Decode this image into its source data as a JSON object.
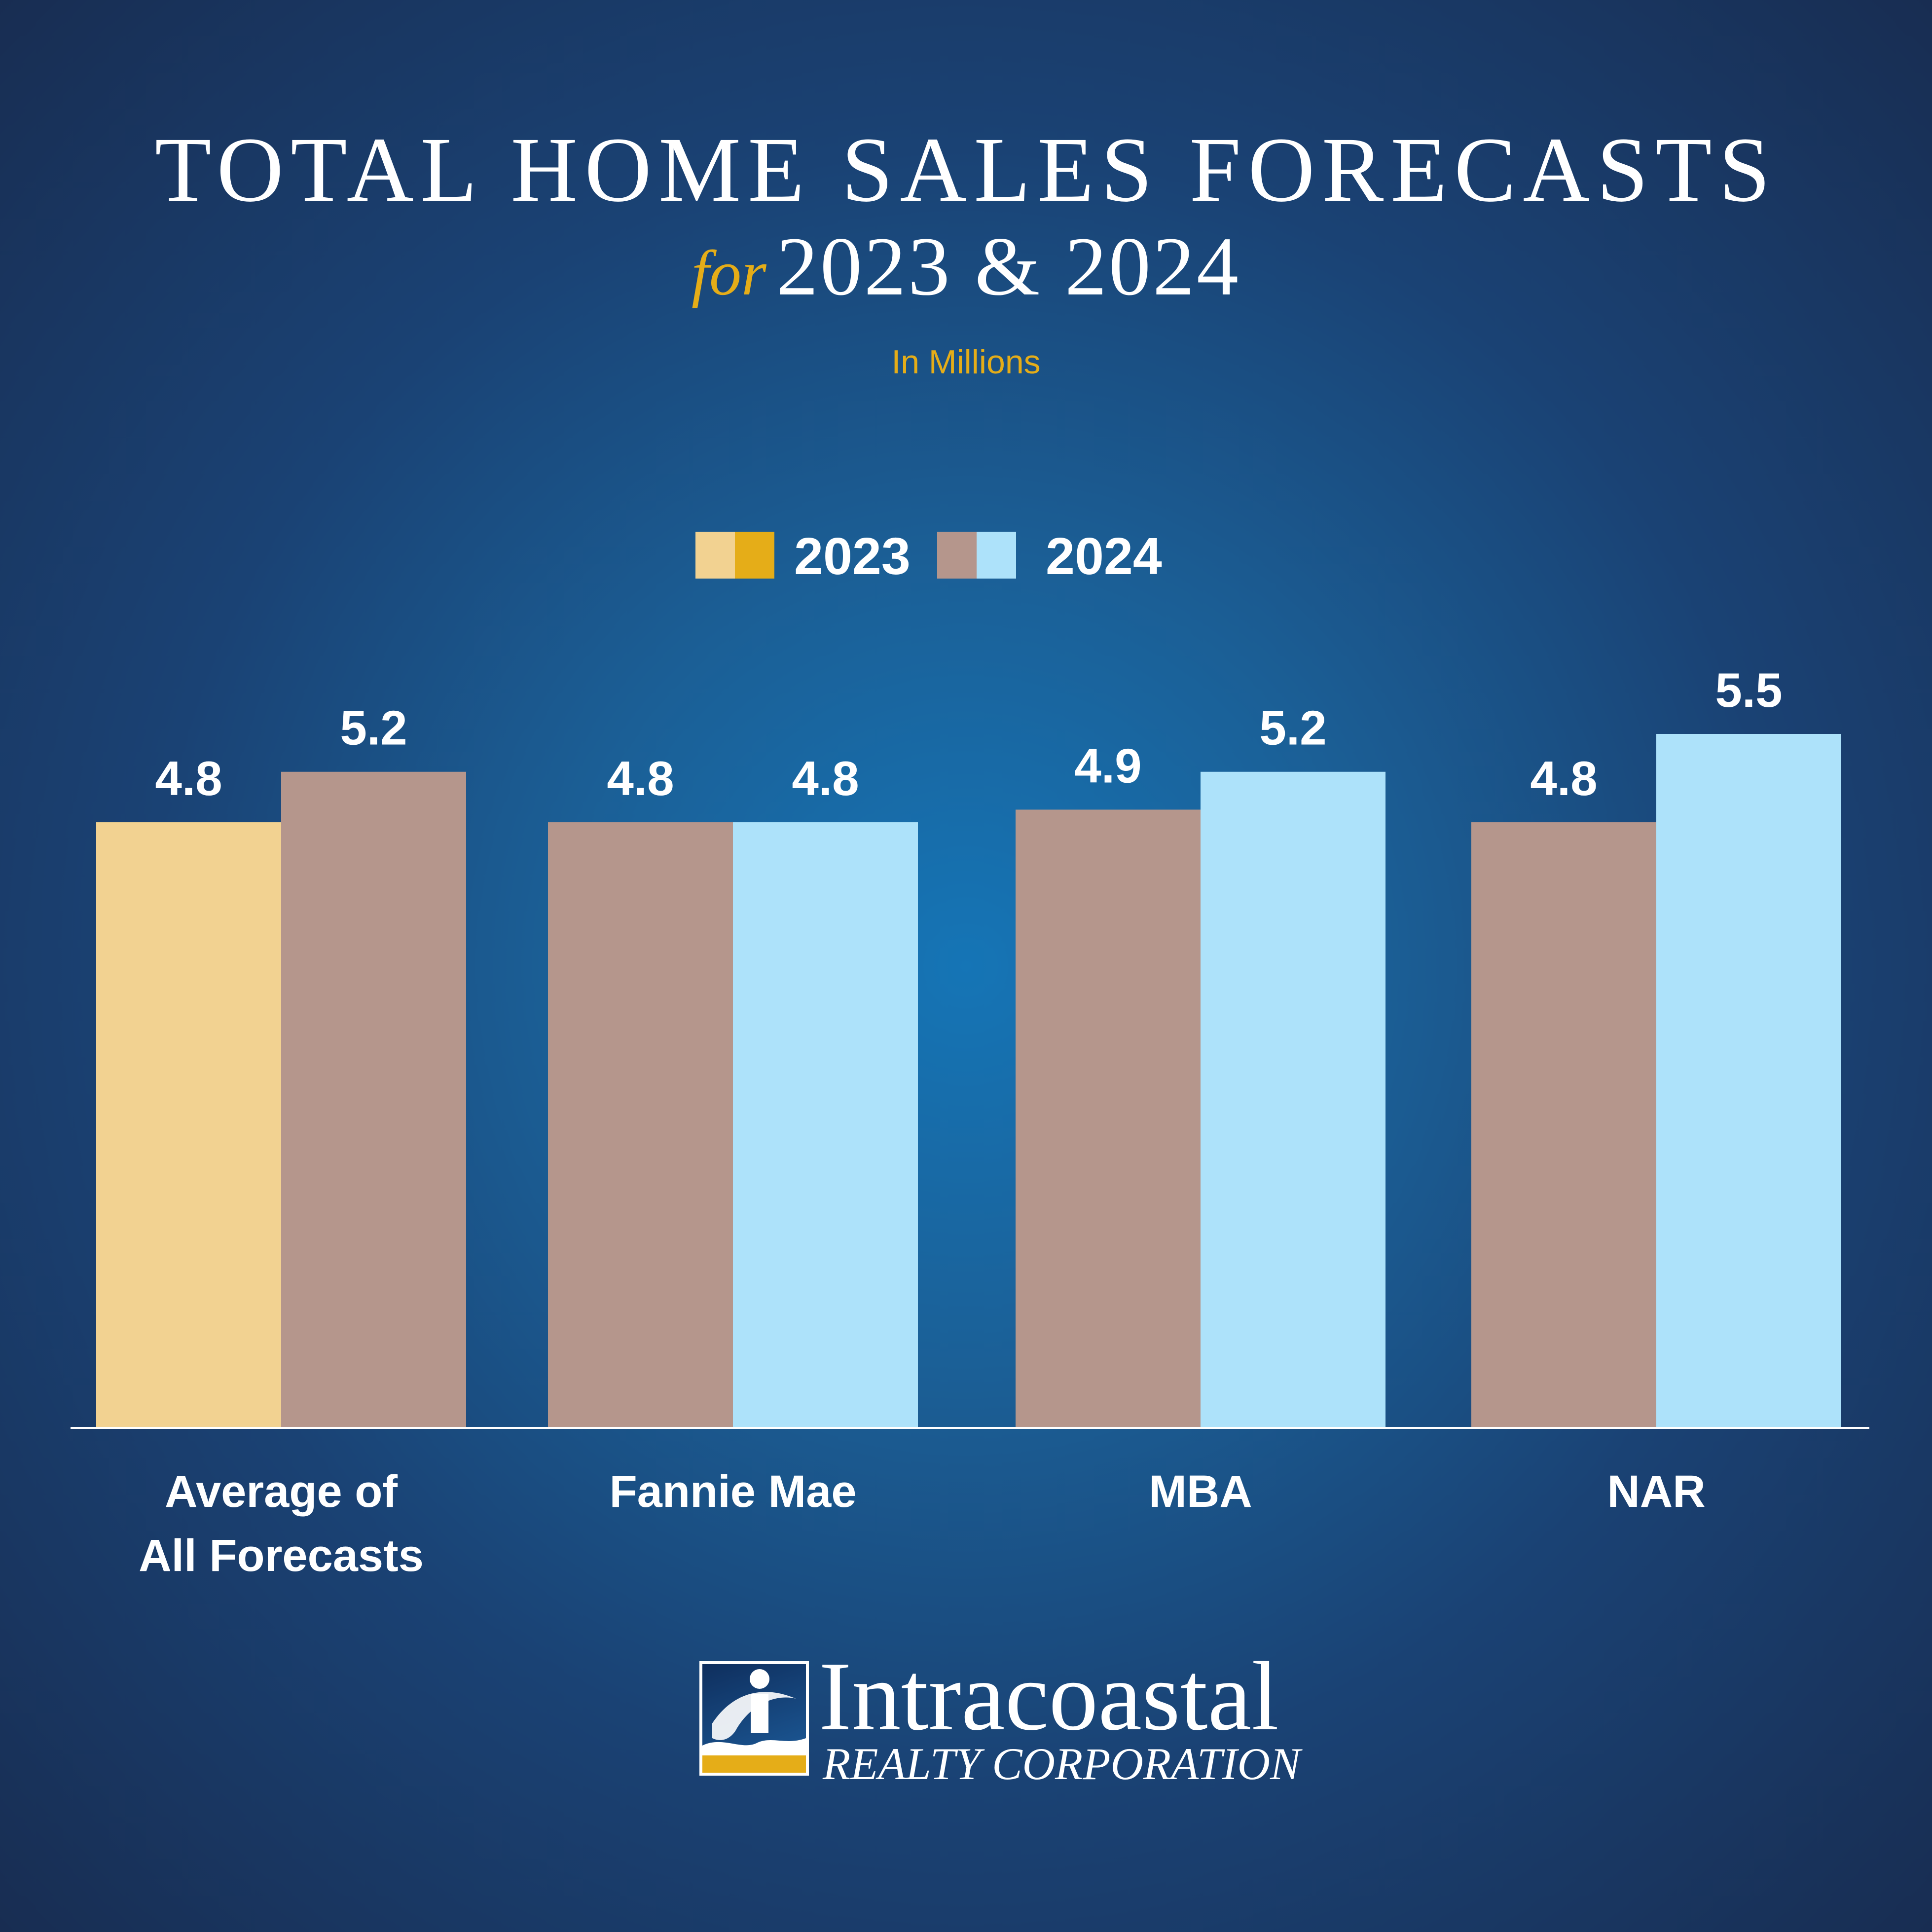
{
  "header": {
    "title": "TOTAL HOME SALES FORECASTS",
    "subtitle_for": "for",
    "subtitle_years": "2023 & 2024",
    "units": "In Millions"
  },
  "legend": [
    {
      "label": "2023",
      "swatches": [
        "#f2d291",
        "#e5ad18"
      ]
    },
    {
      "label": "2024",
      "swatches": [
        "#b5968c",
        "#ade2fa"
      ]
    }
  ],
  "chart_data": {
    "type": "bar",
    "title": "TOTAL HOME SALES FORECASTS for 2023 & 2024",
    "ylabel": "In Millions",
    "categories": [
      "Average of All Forecasts",
      "Fannie Mae",
      "MBA",
      "NAR"
    ],
    "category_lines": [
      [
        "Average of",
        "All Forecasts"
      ],
      [
        "Fannie Mae"
      ],
      [
        "MBA"
      ],
      [
        "NAR"
      ]
    ],
    "series": [
      {
        "name": "2023",
        "values": [
          4.8,
          4.8,
          4.9,
          4.8
        ]
      },
      {
        "name": "2024",
        "values": [
          5.2,
          4.8,
          5.2,
          5.5
        ]
      }
    ],
    "value_labels": [
      [
        "4.8",
        "4.8",
        "4.9",
        "4.8"
      ],
      [
        "5.2",
        "4.8",
        "5.2",
        "5.5"
      ]
    ],
    "bar_colors": [
      [
        "#f2d291",
        "#b5968c"
      ],
      [
        "#b5968c",
        "#ade2fa"
      ],
      [
        "#b5968c",
        "#ade2fa"
      ],
      [
        "#b5968c",
        "#ade2fa"
      ]
    ],
    "ylim": [
      0,
      5.5
    ],
    "grid": false,
    "legend_position": "top-center"
  },
  "logo": {
    "name": "Intracoastal",
    "subtitle": "REALTY CORPORATION",
    "colors": {
      "navy": "#1a3a6b",
      "gold": "#e5ad18",
      "white": "#ffffff"
    }
  }
}
